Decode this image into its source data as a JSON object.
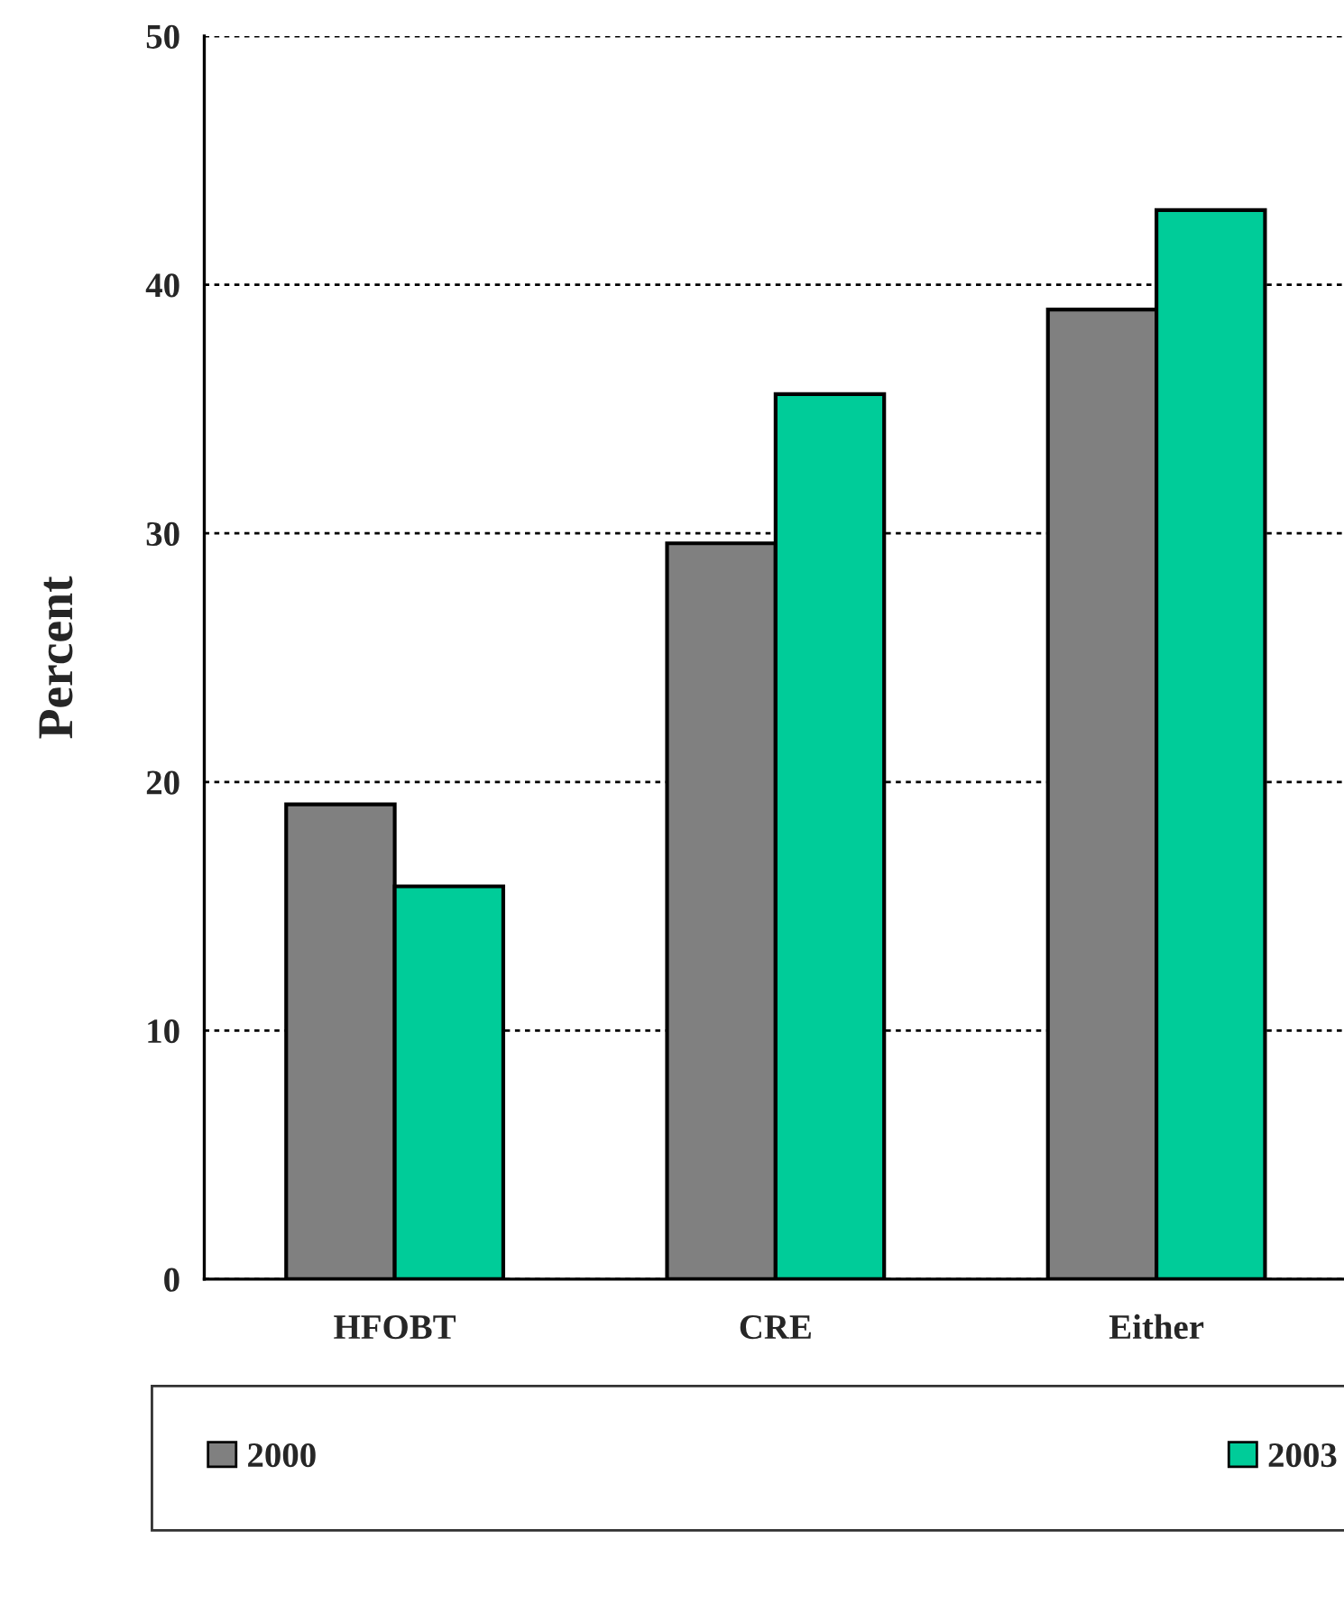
{
  "chart_data": {
    "type": "bar",
    "ylabel": "Percent",
    "categories": [
      "HFOBT",
      "CRE",
      "Either"
    ],
    "series": [
      {
        "name": "2000",
        "color": "#808080",
        "values": [
          19.1,
          29.6,
          39.0
        ]
      },
      {
        "name": "2003",
        "color": "#00cc99",
        "values": [
          15.8,
          35.6,
          43.0
        ]
      }
    ],
    "ylim": [
      0,
      50
    ],
    "yticks": [
      0,
      10,
      20,
      30,
      40,
      50
    ],
    "grid": "y",
    "legend": "bottom"
  }
}
